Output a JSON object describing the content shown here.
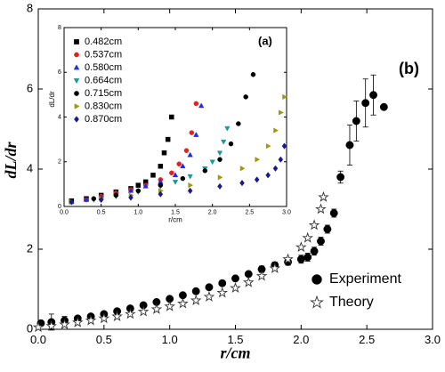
{
  "chart_data": [
    {
      "type": "scatter",
      "xlabel": "r/cm",
      "ylabel": "dL/dr",
      "annotation": "(b)",
      "xlim": [
        0,
        3
      ],
      "ylim": [
        0,
        8
      ],
      "xticks": [
        {
          "value": 0,
          "label": "0.0"
        },
        0.5,
        {
          "value": 1,
          "label": "1.0"
        },
        1.5,
        {
          "value": 2,
          "label": "2.0"
        },
        2.5,
        {
          "value": 3,
          "label": "3.0"
        }
      ],
      "yticks": [
        0,
        2,
        4,
        6,
        8
      ],
      "legend": "lower right",
      "series": [
        {
          "name": "Experiment",
          "color": "#000000",
          "marker": "circle",
          "filled": true,
          "x": [
            0.02,
            0.1,
            0.2,
            0.3,
            0.4,
            0.5,
            0.6,
            0.7,
            0.8,
            0.9,
            1.0,
            1.1,
            1.2,
            1.3,
            1.4,
            1.5,
            1.6,
            1.7,
            1.8,
            1.9,
            2.0,
            2.05,
            2.1,
            2.15,
            2.2,
            2.25,
            2.3,
            2.37,
            2.42,
            2.49,
            2.55,
            2.63
          ],
          "values": [
            0.15,
            0.18,
            0.22,
            0.27,
            0.32,
            0.38,
            0.45,
            0.52,
            0.6,
            0.68,
            0.76,
            0.85,
            0.95,
            1.05,
            1.15,
            1.27,
            1.38,
            1.5,
            1.6,
            1.68,
            1.75,
            1.8,
            1.95,
            2.2,
            2.5,
            2.9,
            3.8,
            4.6,
            5.2,
            5.65,
            5.85,
            5.55
          ],
          "errors": [
            0.05,
            0.2,
            0.1,
            0.05,
            0.05,
            0.05,
            0.05,
            0.05,
            0.05,
            0.05,
            0.05,
            0.05,
            0.05,
            0.05,
            0.05,
            0.05,
            0.05,
            0.08,
            0.08,
            0.08,
            0.1,
            0.1,
            0.1,
            0.1,
            0.1,
            0.1,
            0.15,
            0.5,
            0.5,
            0.6,
            0.5,
            0.05
          ]
        },
        {
          "name": "Theory",
          "color": "#333333",
          "marker": "star",
          "filled": false,
          "x": [
            0,
            0.1,
            0.2,
            0.3,
            0.4,
            0.5,
            0.6,
            0.7,
            0.8,
            0.9,
            1.0,
            1.1,
            1.2,
            1.3,
            1.4,
            1.5,
            1.6,
            1.7,
            1.8,
            1.9,
            2.0,
            2.05,
            2.1,
            2.15,
            2.17
          ],
          "values": [
            0.05,
            0.08,
            0.12,
            0.17,
            0.22,
            0.27,
            0.32,
            0.38,
            0.44,
            0.5,
            0.57,
            0.64,
            0.72,
            0.81,
            0.91,
            1.03,
            1.17,
            1.33,
            1.52,
            1.75,
            2.05,
            2.28,
            2.6,
            3.0,
            3.3
          ]
        }
      ]
    },
    {
      "type": "scatter",
      "xlabel": "r/cm",
      "ylabel": "dL/dr",
      "annotation": "(a)",
      "xlim": [
        0,
        3
      ],
      "ylim": [
        0,
        8
      ],
      "xticks": [
        {
          "value": 0,
          "label": "0.0"
        },
        0.5,
        {
          "value": 1,
          "label": "1.0"
        },
        1.5,
        {
          "value": 2,
          "label": "2.0"
        },
        2.5,
        {
          "value": 3,
          "label": "3.0"
        }
      ],
      "yticks": [
        0,
        2,
        4,
        6,
        8
      ],
      "legend": "upper left",
      "series": [
        {
          "name": "0.482cm",
          "color": "#000000",
          "marker": "square",
          "filled": true,
          "x": [
            0.1,
            0.3,
            0.5,
            0.7,
            0.9,
            1.0,
            1.1,
            1.2,
            1.3,
            1.35,
            1.4,
            1.45
          ],
          "values": [
            0.25,
            0.35,
            0.5,
            0.65,
            0.8,
            0.95,
            1.1,
            1.4,
            1.8,
            2.4,
            3.0,
            4.0
          ]
        },
        {
          "name": "0.537cm",
          "color": "#e8201c",
          "marker": "circle",
          "filled": true,
          "x": [
            0.1,
            0.3,
            0.5,
            0.7,
            0.9,
            1.1,
            1.3,
            1.45,
            1.55,
            1.65,
            1.72,
            1.78
          ],
          "values": [
            0.2,
            0.3,
            0.45,
            0.6,
            0.75,
            0.95,
            1.2,
            1.5,
            1.9,
            2.5,
            3.3,
            4.6
          ]
        },
        {
          "name": "0.580cm",
          "color": "#1c2fe0",
          "marker": "triangle-up",
          "filled": true,
          "x": [
            0.1,
            0.3,
            0.5,
            0.7,
            0.9,
            1.1,
            1.3,
            1.5,
            1.6,
            1.7,
            1.78,
            1.85
          ],
          "values": [
            0.2,
            0.3,
            0.4,
            0.55,
            0.7,
            0.9,
            1.1,
            1.4,
            1.8,
            2.3,
            3.2,
            4.5
          ]
        },
        {
          "name": "0.664cm",
          "color": "#169a9a",
          "marker": "triangle-down",
          "filled": true,
          "x": [
            0.1,
            0.4,
            0.7,
            1.0,
            1.3,
            1.5,
            1.7,
            1.9,
            2.0,
            2.1,
            2.15,
            2.2
          ],
          "values": [
            0.2,
            0.3,
            0.45,
            0.65,
            0.9,
            1.1,
            1.35,
            1.7,
            2.0,
            2.4,
            2.9,
            3.5
          ]
        },
        {
          "name": "0.715cm",
          "color": "#000000",
          "marker": "circle",
          "filled": true,
          "x": [
            0.1,
            0.4,
            0.7,
            1.0,
            1.3,
            1.6,
            1.9,
            2.1,
            2.25,
            2.35,
            2.45,
            2.55
          ],
          "values": [
            0.25,
            0.35,
            0.5,
            0.7,
            0.95,
            1.25,
            1.6,
            2.1,
            2.8,
            3.7,
            4.9,
            5.9
          ]
        },
        {
          "name": "0.830cm",
          "color": "#9a9a10",
          "marker": "triangle-right",
          "filled": true,
          "x": [
            0.1,
            0.5,
            0.9,
            1.3,
            1.7,
            2.1,
            2.4,
            2.6,
            2.75,
            2.85,
            2.92,
            2.97
          ],
          "values": [
            0.2,
            0.35,
            0.5,
            0.7,
            0.95,
            1.3,
            1.7,
            2.1,
            2.7,
            3.4,
            4.2,
            4.9
          ]
        },
        {
          "name": "0.870cm",
          "color": "#1a1a8c",
          "marker": "diamond",
          "filled": true,
          "x": [
            0.1,
            0.5,
            0.9,
            1.3,
            1.7,
            2.1,
            2.4,
            2.6,
            2.75,
            2.85,
            2.92,
            2.97
          ],
          "values": [
            0.2,
            0.3,
            0.4,
            0.55,
            0.7,
            0.9,
            1.05,
            1.2,
            1.4,
            1.7,
            2.1,
            2.7
          ]
        }
      ]
    }
  ]
}
